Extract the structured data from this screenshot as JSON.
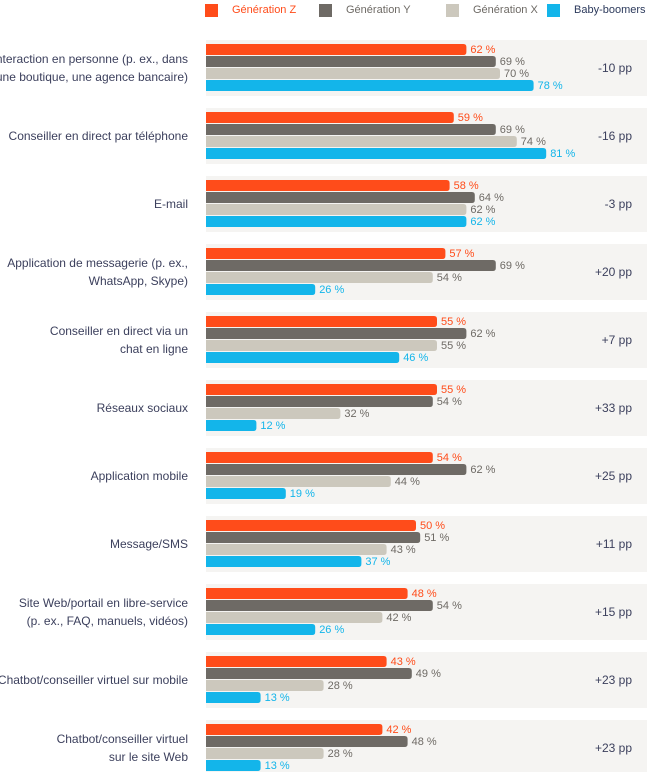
{
  "chart_data": {
    "type": "bar",
    "orientation": "horizontal",
    "xlim": [
      0,
      100
    ],
    "grid": false,
    "legend_position": "top",
    "series": [
      {
        "name": "Génération Z",
        "color": "#ff4c1a",
        "values": [
          62,
          59,
          58,
          57,
          55,
          55,
          54,
          50,
          48,
          43,
          42
        ]
      },
      {
        "name": "Génération Y",
        "color": "#6e6a65",
        "values": [
          69,
          69,
          64,
          69,
          62,
          54,
          62,
          51,
          54,
          49,
          48
        ]
      },
      {
        "name": "Génération X",
        "color": "#ccc8bd",
        "values": [
          70,
          74,
          62,
          54,
          55,
          32,
          44,
          43,
          42,
          28,
          28
        ]
      },
      {
        "name": "Baby-boomers",
        "color": "#13b5ea",
        "values": [
          78,
          81,
          62,
          26,
          46,
          12,
          19,
          37,
          26,
          13,
          13
        ]
      }
    ],
    "categories": [
      {
        "lines": [
          "Interaction en personne (p. ex., dans",
          "une boutique, une agence bancaire)"
        ],
        "diff": "-10 pp"
      },
      {
        "lines": [
          "Conseiller en direct par téléphone"
        ],
        "diff": "-16 pp"
      },
      {
        "lines": [
          "E-mail"
        ],
        "diff": "-3 pp"
      },
      {
        "lines": [
          "Application de messagerie (p. ex.,",
          "WhatsApp, Skype)"
        ],
        "diff": "+20 pp"
      },
      {
        "lines": [
          "Conseiller en direct via un",
          "chat en ligne"
        ],
        "diff": "+7 pp"
      },
      {
        "lines": [
          "Réseaux sociaux"
        ],
        "diff": "+33 pp"
      },
      {
        "lines": [
          "Application mobile"
        ],
        "diff": "+25 pp"
      },
      {
        "lines": [
          "Message/SMS"
        ],
        "diff": "+11 pp"
      },
      {
        "lines": [
          "Site Web/portail en libre-service",
          "(p. ex., FAQ, manuels, vidéos)"
        ],
        "diff": "+15 pp"
      },
      {
        "lines": [
          "Chatbot/conseiller virtuel sur mobile"
        ],
        "diff": "+23 pp"
      },
      {
        "lines": [
          "Chatbot/conseiller virtuel",
          "sur le site Web"
        ],
        "diff": "+23 pp"
      }
    ],
    "value_suffix": " %",
    "value_label_colors": {
      "Génération Z": "#ff4c1a",
      "Génération Y": "#6e6a65",
      "Génération X": "#6e6a65",
      "Baby-boomers": "#13b5ea"
    },
    "panel_color": "#f5f4f2"
  }
}
